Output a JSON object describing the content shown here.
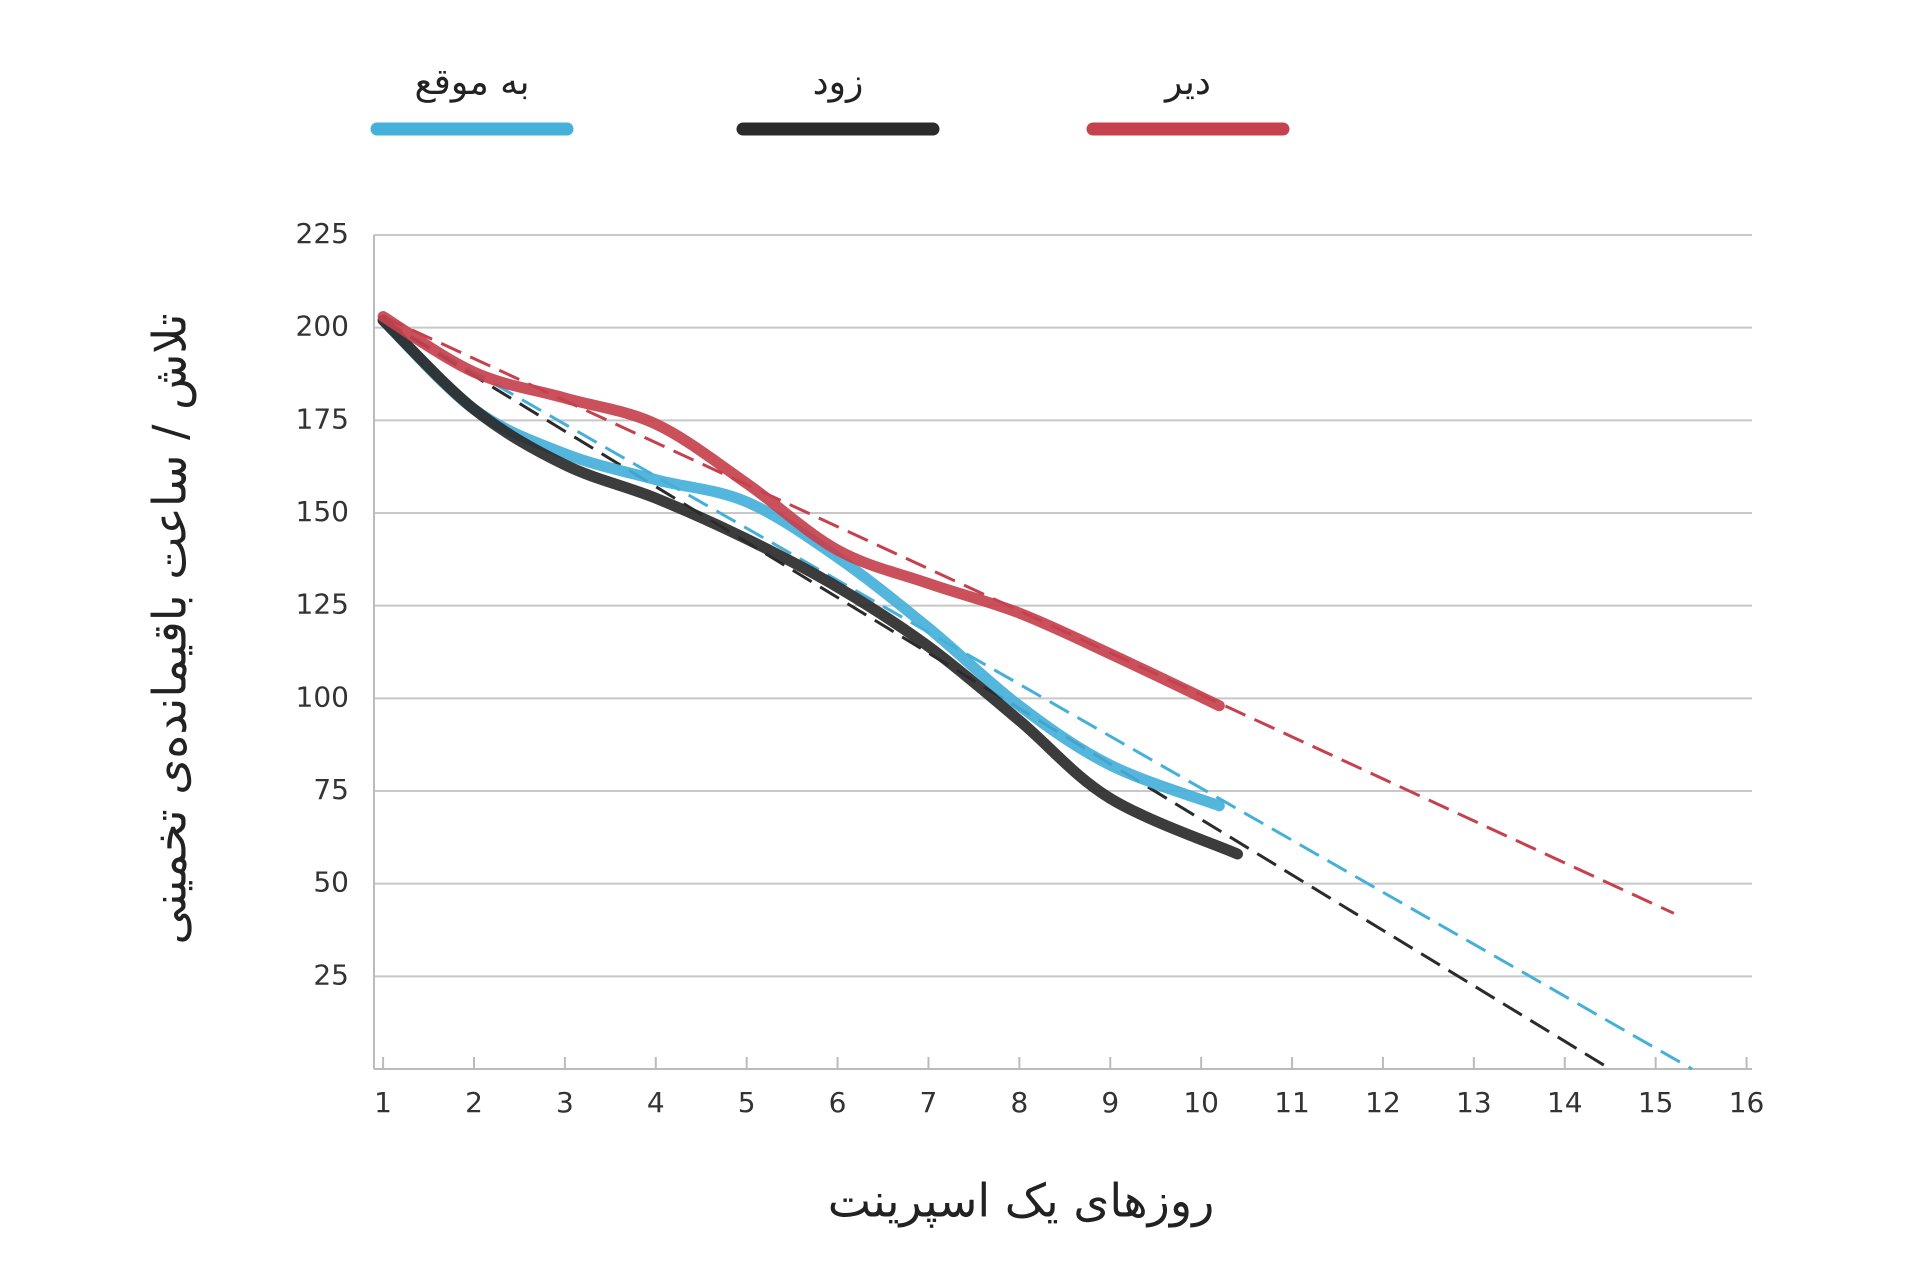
{
  "chart_data": {
    "type": "line",
    "x_label": "روزهای یک اسپرینت",
    "y_label": "تلاش / ساعت باقیمانده‌ی تخمینی",
    "xlim": [
      0.9,
      16.06
    ],
    "xticks": [
      1,
      2,
      3,
      4,
      5,
      6,
      7,
      8,
      9,
      10,
      11,
      12,
      13,
      14,
      15,
      16
    ],
    "ylim": [
      0,
      225
    ],
    "yticks": [
      25,
      50,
      75,
      100,
      125,
      150,
      175,
      200,
      225
    ],
    "grid": true,
    "legend": "top",
    "series": [
      {
        "name": "به موقع",
        "color": "#45b0d9",
        "x": [
          1,
          2,
          3,
          4,
          5,
          6,
          7,
          8,
          9,
          10.2
        ],
        "values": [
          202,
          178,
          166,
          159,
          153,
          138,
          119,
          98,
          82,
          71
        ],
        "trend": {
          "x": [
            1,
            15.4
          ],
          "values": [
            202,
            0
          ]
        }
      },
      {
        "name": "زود",
        "color": "#2b2b2b",
        "x": [
          1,
          2,
          3,
          4,
          5,
          6,
          7,
          8,
          9,
          10.4
        ],
        "values": [
          202,
          178,
          163,
          154,
          143,
          130,
          114,
          94,
          73,
          58
        ],
        "trend": {
          "x": [
            1,
            14.5
          ],
          "values": [
            202,
            0
          ]
        }
      },
      {
        "name": "دیر",
        "color": "#c5414e",
        "x": [
          1,
          2,
          3,
          4,
          5,
          6,
          7,
          8,
          9,
          10.2
        ],
        "values": [
          203,
          188,
          181,
          174,
          158,
          140,
          131,
          123,
          112,
          98
        ],
        "trend": {
          "x": [
            1,
            15.2
          ],
          "values": [
            203,
            42
          ]
        }
      }
    ]
  }
}
